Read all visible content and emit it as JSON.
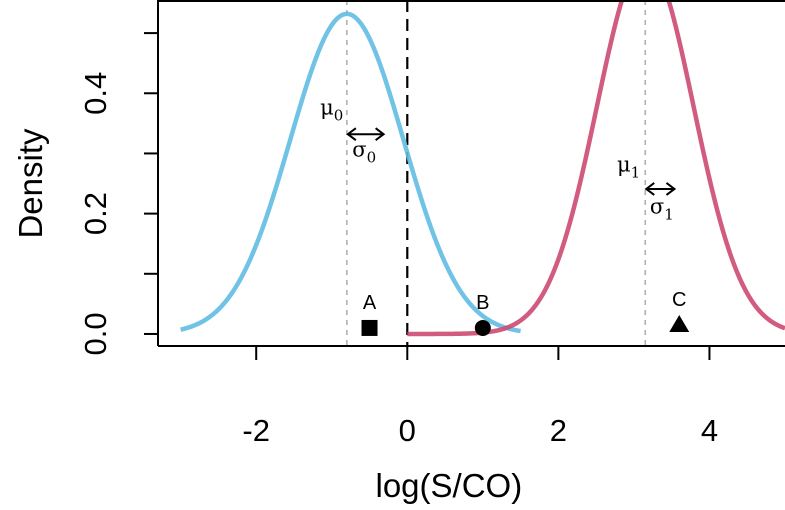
{
  "chart_data": {
    "type": "line",
    "title": "",
    "xlabel": "log(S/CO)",
    "ylabel": "Density",
    "xlim": [
      -3.3,
      5.0
    ],
    "ylim": [
      -0.02,
      0.555
    ],
    "x_ticks": [
      -2,
      0,
      2,
      4
    ],
    "x_tick_labels": [
      "-2",
      "0",
      "2",
      "4"
    ],
    "y_ticks": [
      0.0,
      0.1,
      0.2,
      0.3,
      0.4,
      0.5
    ],
    "y_tick_labels": [
      "0.0",
      "",
      "0.2",
      "",
      "0.4",
      ""
    ],
    "grid": false,
    "series": [
      {
        "distribution": "normal",
        "mean": -0.8,
        "sd": 0.75,
        "x_range": [
          -3.0,
          1.5
        ],
        "color": "#62bde3"
      },
      {
        "distribution": "normal",
        "mean": 3.15,
        "sd": 0.64,
        "x_range": [
          0.0,
          5.0
        ],
        "color": "#cc4a72"
      }
    ],
    "reference_lines": [
      {
        "x": -0.8,
        "style": "dotted",
        "color": "#b0b0b0"
      },
      {
        "x": 3.15,
        "style": "dotted",
        "color": "#b0b0b0"
      },
      {
        "x": 0.0,
        "style": "dashed",
        "color": "#000000"
      }
    ],
    "annotations": [
      {
        "symbol": "μ",
        "sub": "0",
        "x": -1.0,
        "y": 0.365
      },
      {
        "symbol": "σ",
        "sub": "0",
        "x": -0.57,
        "y": 0.295,
        "arrow_from": -0.8,
        "arrow_to": -0.3,
        "arrow_y": 0.332
      },
      {
        "symbol": "μ",
        "sub": "1",
        "x": 2.93,
        "y": 0.27
      },
      {
        "symbol": "σ",
        "sub": "1",
        "x": 3.37,
        "y": 0.2,
        "arrow_from": 3.15,
        "arrow_to": 3.55,
        "arrow_y": 0.241
      }
    ],
    "points": [
      {
        "label": "A",
        "x": -0.5,
        "y": 0.01,
        "marker": "square"
      },
      {
        "label": "B",
        "x": 1.0,
        "y": 0.01,
        "marker": "circle"
      },
      {
        "label": "C",
        "x": 3.6,
        "y": 0.015,
        "marker": "triangle"
      }
    ]
  }
}
